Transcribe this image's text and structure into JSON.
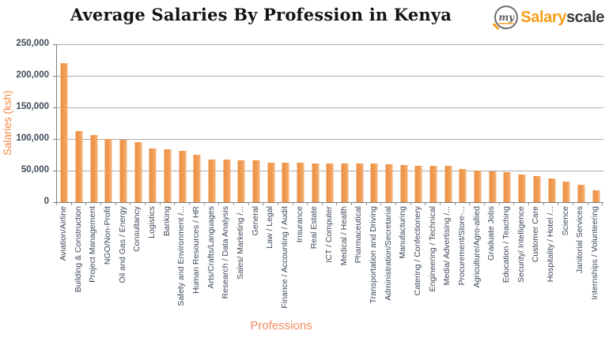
{
  "header": {
    "title": "Average Salaries By Profession in Kenya",
    "logo": {
      "prefix": "my",
      "brand_orange": "Salary",
      "brand_dark": "scale"
    }
  },
  "colors": {
    "bar": "#F09B51",
    "brand_orange": "#F7A01B",
    "axis_text": "#3E4959",
    "axis_title_orange": "#F28A45",
    "gridline": "#ACACAC"
  },
  "chart_data": {
    "type": "bar",
    "title": "Average Salaries By Profession in Kenya",
    "xlabel": "Professions",
    "ylabel": "Salaries (ksh)",
    "ylim": [
      0,
      250000
    ],
    "ytick_step": 50000,
    "ytick_labels": [
      "250,000",
      "200,000",
      "150,000",
      "100,000",
      "50,000",
      "0"
    ],
    "grid": true,
    "legend": "none",
    "categories": [
      "Aviation/Airline",
      "Building & Construction",
      "Project Management",
      "NGO/Non-Profit",
      "Oil and Gas / Energy",
      "Consultancy",
      "Logistics",
      "Banking",
      "Safety and Environment /...",
      "Human Resources / HR",
      "Arts/Crafts/Languages",
      "Research / Data Analysis",
      "Sales/ Marketing /...",
      "General",
      "Law / Legal",
      "Finance / Accounting / Audit",
      "Insurance",
      "Real Estate",
      "ICT / Computer",
      "Medical / Health",
      "Pharmaceutical",
      "Transportation and Driving",
      "Administration/Secretarial",
      "Manufacturing",
      "Catering / Confectionery",
      "Engineering / Technical",
      "Media/ Advertising /...",
      "Procurement/Store-...",
      "Agriculture/Agro-allied",
      "Graduate Jobs",
      "Education / Teaching",
      "Security/ Intelligence",
      "Customer Care",
      "Hospitality / Hotel /...",
      "Science",
      "Janitorial Services",
      "Internships / Volunteering"
    ],
    "values": [
      220000,
      112000,
      106000,
      100000,
      99000,
      95000,
      85000,
      84000,
      81000,
      75000,
      67000,
      67000,
      66000,
      66000,
      63000,
      62000,
      62000,
      61000,
      61000,
      61000,
      61000,
      61000,
      60000,
      59000,
      58000,
      58000,
      57000,
      52000,
      50000,
      49000,
      47000,
      44000,
      41000,
      37000,
      32000,
      27000,
      19000
    ]
  }
}
